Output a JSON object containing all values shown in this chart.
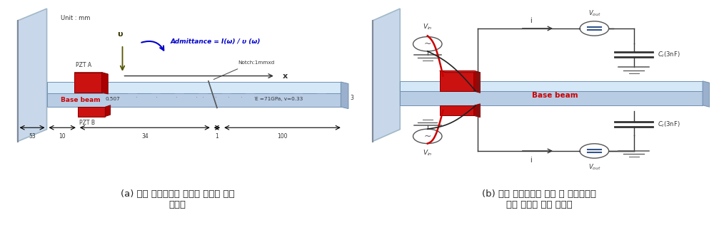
{
  "fig_width": 10.14,
  "fig_height": 3.23,
  "dpi": 100,
  "bg_color": "#ffffff",
  "caption_a": "(a) 병치 압전센서가 부착된 손상이 있는\n보모델",
  "caption_b": "(b) 병치 압전센서의 가진 및 전기역학적\n신호 측정을 위한 회로도",
  "caption_fontsize": 9.5,
  "left_panel": {
    "unit_label": "Unit : mm",
    "admittance_label": "Admittance = I(ω) / υ (ω)",
    "x_label": "x",
    "v_label": "υ",
    "base_beam_label": "Base beam",
    "pzt_a_label": "PZT A",
    "pzt_b_label": "PZT B",
    "notch_label": "Notch:1mmxd",
    "material_label": "E =71GPa, v=0.33",
    "dim_0507": "0.507",
    "dim_53": "53",
    "dim_10": "10",
    "dim_34": "34",
    "dim_1": "1",
    "dim_100": "100",
    "dim_3": "3"
  },
  "right_panel": {
    "base_beam_label": "Base beam",
    "vin_label": "V_{in}",
    "vout_label": "V_{out}",
    "current_label": "i",
    "capacitor_label": "C_t(3nF)"
  },
  "beam_top_color": "#d4e8f8",
  "beam_front_color": "#b8cce4",
  "beam_right_color": "#9ab0cc",
  "beam_edge_color": "#7090b0",
  "pzt_top_color": "#dd2222",
  "pzt_front_color": "#cc1111",
  "pzt_right_color": "#aa0000",
  "wall_color": "#c8d8ea",
  "wall_edge": "#a0b8c8",
  "admittance_color": "#0000cc",
  "base_beam_text_color": "#cc0000",
  "wire_red": "#cc0000",
  "wire_black": "#222222",
  "circuit_black": "#333333",
  "ground_color": "#555555"
}
